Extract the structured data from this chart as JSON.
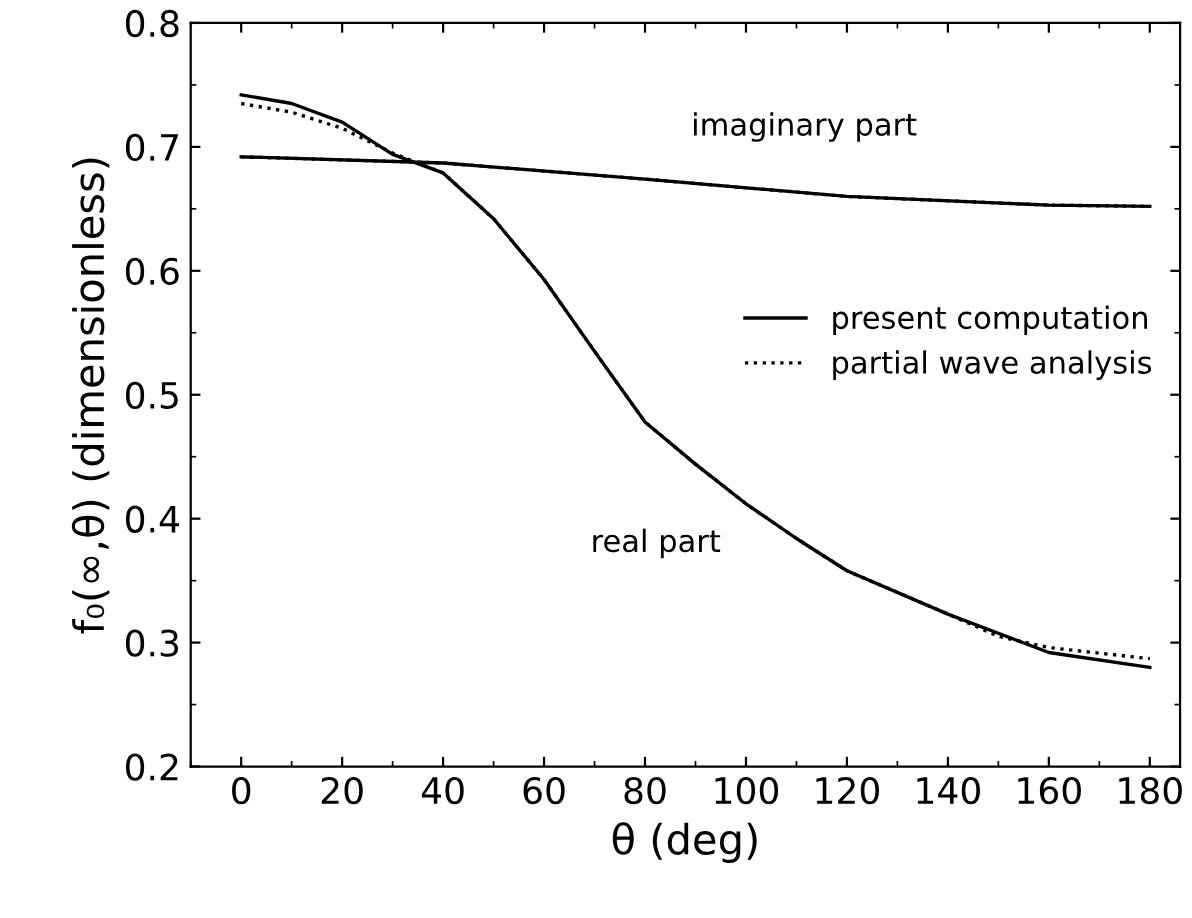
{
  "chart_data": {
    "type": "line",
    "xlabel": "θ (deg)",
    "ylabel": "f₀(∞,θ) (dimensionless)",
    "xlim": [
      -10,
      186
    ],
    "ylim": [
      0.2,
      0.8
    ],
    "xticks": [
      0,
      20,
      40,
      60,
      80,
      100,
      120,
      140,
      160,
      180
    ],
    "yticks": [
      0.2,
      0.3,
      0.4,
      0.5,
      0.6,
      0.7,
      0.8
    ],
    "grid": false,
    "legend": "right",
    "marker": "none",
    "series": [
      {
        "name": "present computation",
        "color": "#000000",
        "line_style": "solid",
        "x": [
          0,
          10,
          20,
          30,
          40,
          50,
          60,
          70,
          80,
          90,
          100,
          110,
          120,
          140,
          160,
          180
        ],
        "values": [
          0.742,
          0.735,
          0.72,
          0.694,
          0.679,
          0.642,
          0.593,
          0.535,
          0.478,
          0.444,
          0.412,
          0.384,
          0.358,
          0.323,
          0.292,
          0.28
        ]
      },
      {
        "color": "#000000",
        "line_style": "solid",
        "x": [
          0,
          40,
          80,
          120,
          160,
          180
        ],
        "values": [
          0.692,
          0.687,
          0.674,
          0.66,
          0.653,
          0.652
        ]
      },
      {
        "name": "partial wave analysis",
        "color": "#000000",
        "line_style": "dotted",
        "x": [
          0,
          10,
          20,
          30,
          40,
          50,
          60,
          70,
          80,
          90,
          100,
          110,
          120,
          140,
          150,
          160,
          180
        ],
        "values": [
          0.735,
          0.728,
          0.715,
          0.695,
          0.679,
          0.642,
          0.593,
          0.535,
          0.478,
          0.444,
          0.412,
          0.384,
          0.358,
          0.323,
          0.305,
          0.296,
          0.287
        ]
      },
      {
        "color": "#000000",
        "line_style": "dotted",
        "x": [
          0,
          40,
          80,
          120,
          160,
          180
        ],
        "values": [
          0.692,
          0.687,
          0.674,
          0.66,
          0.653,
          0.652
        ]
      }
    ],
    "annotations": [
      "imaginary part",
      "real part"
    ]
  }
}
